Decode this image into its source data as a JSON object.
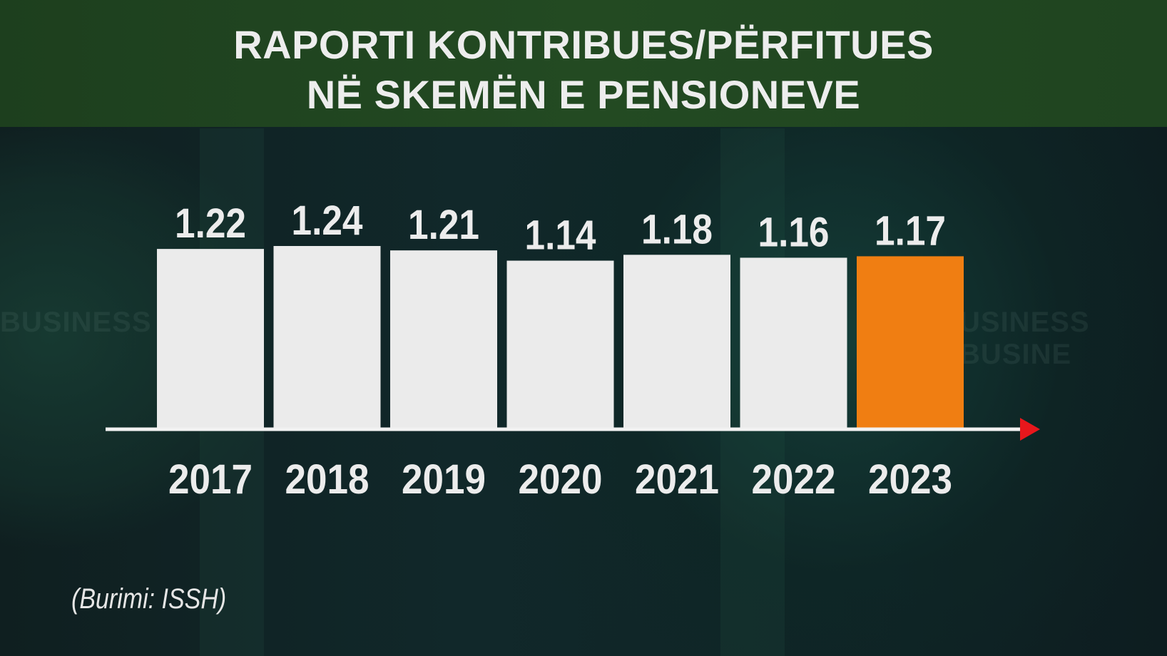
{
  "title": {
    "line1": "RAPORTI KONTRIBUES/PËRFITUES",
    "line2": "NË SKEMËN E PENSIONEVE"
  },
  "watermark": {
    "left": "BUSINESS BU",
    "right": "USINESS BUSINE"
  },
  "source": "(Burimi: ISSH)",
  "colors": {
    "bar": "#ebebeb",
    "highlight": "#f07e12",
    "axis": "#f2f2f2",
    "arrow": "#e8171c",
    "text": "#ececec"
  },
  "chart_data": {
    "type": "bar",
    "categories": [
      "2017",
      "2018",
      "2019",
      "2020",
      "2021",
      "2022",
      "2023"
    ],
    "values": [
      1.22,
      1.24,
      1.21,
      1.14,
      1.18,
      1.16,
      1.17
    ],
    "data_labels": [
      "1.22",
      "1.24",
      "1.21",
      "1.14",
      "1.18",
      "1.16",
      "1.17"
    ],
    "highlight_category": "2023",
    "title": "RAPORTI KONTRIBUES/PËRFITUES NË SKEMËN E PENSIONEVE",
    "xlabel": "",
    "ylabel": "",
    "grid": false,
    "legend": "none"
  }
}
